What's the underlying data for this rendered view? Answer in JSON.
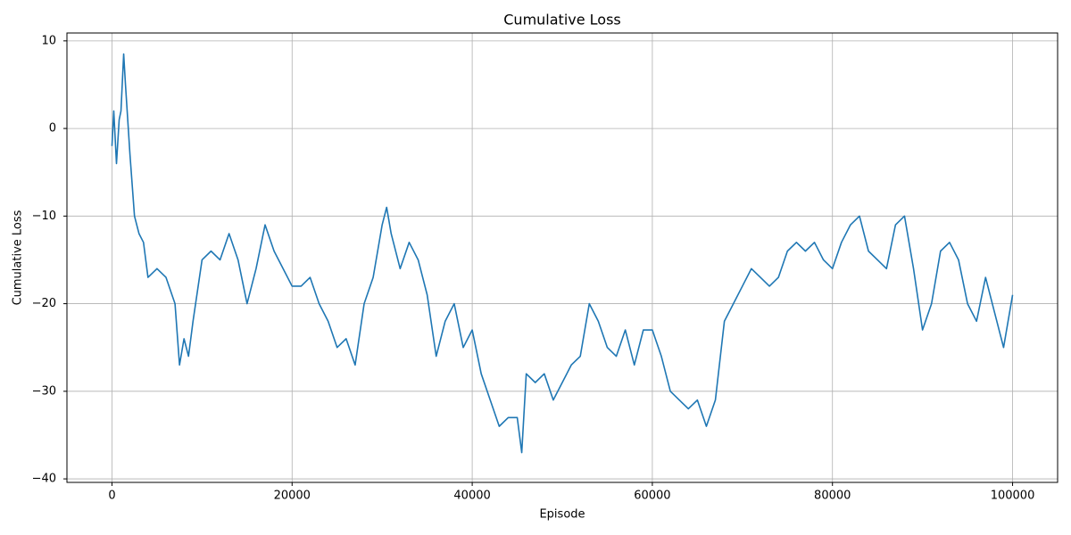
{
  "chart_data": {
    "type": "line",
    "title": "Cumulative Loss",
    "x_label": "Episode",
    "y_label": "Cumulative Loss",
    "grid": true,
    "xlim": [
      -5000,
      105000
    ],
    "xticks": [
      0,
      20000,
      40000,
      60000,
      80000,
      100000
    ],
    "ylim": [
      -40.4,
      10.9
    ],
    "yticks": [
      {
        "value": -40,
        "label": "−40"
      },
      {
        "value": -30,
        "label": "−30"
      },
      {
        "value": -20,
        "label": "−20"
      },
      {
        "value": -10,
        "label": "−10"
      },
      0,
      10
    ],
    "x": [
      0,
      200,
      500,
      800,
      1000,
      1300,
      1500,
      2000,
      2500,
      3000,
      3500,
      4000,
      5000,
      6000,
      7000,
      7500,
      8000,
      8500,
      9000,
      10000,
      11000,
      12000,
      13000,
      14000,
      15000,
      16000,
      17000,
      18000,
      19000,
      20000,
      21000,
      22000,
      23000,
      24000,
      25000,
      26000,
      27000,
      28000,
      29000,
      30000,
      30500,
      31000,
      32000,
      33000,
      34000,
      35000,
      36000,
      37000,
      38000,
      39000,
      40000,
      41000,
      42000,
      43000,
      44000,
      45000,
      45500,
      46000,
      47000,
      48000,
      49000,
      50000,
      51000,
      52000,
      53000,
      54000,
      55000,
      56000,
      57000,
      58000,
      59000,
      60000,
      61000,
      62000,
      63000,
      64000,
      65000,
      66000,
      67000,
      68000,
      69000,
      70000,
      71000,
      72000,
      73000,
      74000,
      75000,
      76000,
      77000,
      78000,
      79000,
      80000,
      81000,
      82000,
      83000,
      84000,
      85000,
      86000,
      87000,
      88000,
      89000,
      90000,
      91000,
      92000,
      93000,
      94000,
      95000,
      96000,
      97000,
      98000,
      99000,
      100000
    ],
    "series": [
      {
        "name": "Cumulative Loss",
        "color": "#1f77b4",
        "values": [
          -2,
          2,
          -4,
          1,
          2,
          8.5,
          5,
          -3,
          -10,
          -12,
          -13,
          -17,
          -16,
          -17,
          -20,
          -27,
          -24,
          -26,
          -22,
          -15,
          -14,
          -15,
          -12,
          -15,
          -20,
          -16,
          -11,
          -14,
          -16,
          -18,
          -18,
          -17,
          -20,
          -22,
          -25,
          -24,
          -27,
          -20,
          -17,
          -11,
          -9,
          -12,
          -16,
          -13,
          -15,
          -19,
          -26,
          -22,
          -20,
          -25,
          -23,
          -28,
          -31,
          -34,
          -33,
          -33,
          -37,
          -28,
          -29,
          -28,
          -31,
          -29,
          -27,
          -26,
          -20,
          -22,
          -25,
          -26,
          -23,
          -27,
          -23,
          -23,
          -26,
          -30,
          -31,
          -32,
          -31,
          -34,
          -31,
          -22,
          -20,
          -18,
          -16,
          -17,
          -18,
          -17,
          -14,
          -13,
          -14,
          -13,
          -15,
          -16,
          -13,
          -11,
          -10,
          -14,
          -15,
          -16,
          -11,
          -10,
          -16,
          -23,
          -20,
          -14,
          -13,
          -15,
          -20,
          -22,
          -17,
          -21,
          -25,
          -19
        ]
      }
    ]
  }
}
